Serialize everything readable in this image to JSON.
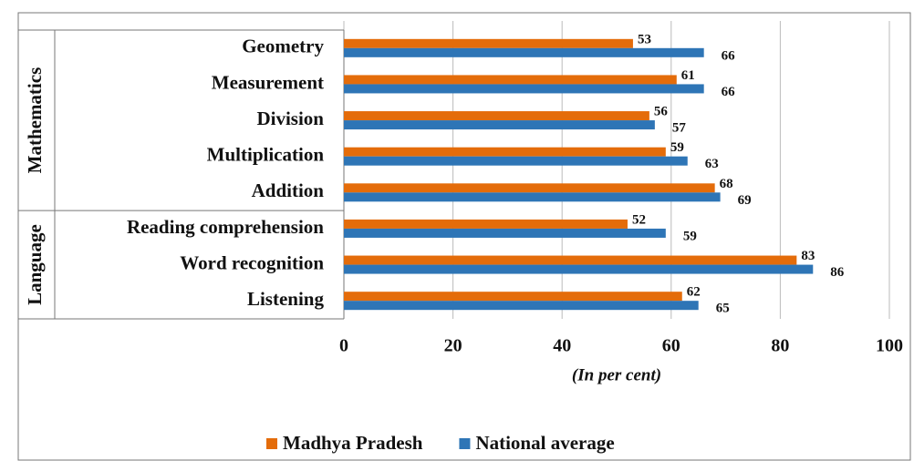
{
  "chart_data": {
    "type": "bar",
    "orientation": "horizontal",
    "groups": [
      {
        "label": "Mathematics",
        "categories": [
          "Geometry",
          "Measurement",
          "Division",
          "Multiplication",
          "Addition"
        ]
      },
      {
        "label": "Language",
        "categories": [
          "Reading comprehension",
          "Word recognition",
          "Listening"
        ]
      }
    ],
    "series": [
      {
        "name": "Madhya Pradesh",
        "color": "#e46c0a",
        "values": [
          53,
          61,
          56,
          59,
          68,
          52,
          83,
          62
        ]
      },
      {
        "name": "National average",
        "color": "#2e75b6",
        "values": [
          66,
          66,
          57,
          63,
          69,
          59,
          86,
          65
        ]
      }
    ],
    "xlim": [
      0,
      100
    ],
    "xticks": [
      0,
      20,
      40,
      60,
      80,
      100
    ],
    "grid": true,
    "x_label": "(In per cent)",
    "legend": "bottom"
  }
}
